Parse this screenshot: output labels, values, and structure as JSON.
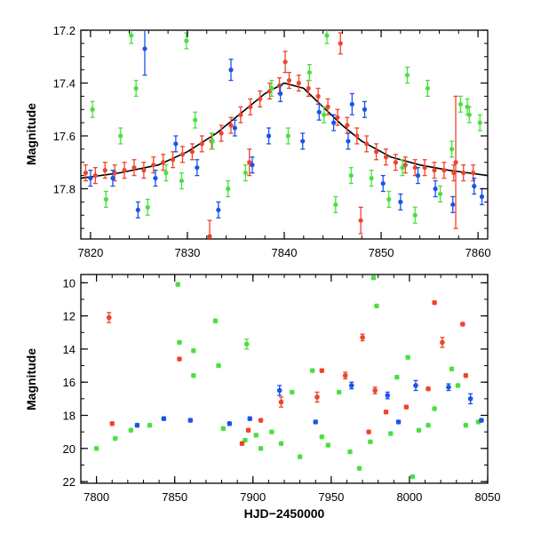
{
  "chart_data": [
    {
      "type": "scatter",
      "title": "",
      "xlabel": "",
      "ylabel": "Magnitude",
      "xlim": [
        7819,
        7861
      ],
      "ylim": [
        17.2,
        17.99
      ],
      "y_inverted": true,
      "xticks": [
        7820,
        7830,
        7840,
        7850,
        7860
      ],
      "yticks": [
        17.2,
        17.4,
        17.6,
        17.8
      ],
      "colors": {
        "red": "#f0432c",
        "green": "#4ae03f",
        "blue": "#1b54e6",
        "model": "#000000"
      },
      "series": [
        {
          "color": "red",
          "x": [
            7819.5,
            7820.5,
            7821.5,
            7822.5,
            7823.5,
            7824.5,
            7825.5,
            7826.5,
            7827.5,
            7828.5,
            7829.5,
            7830.5,
            7831.5,
            7832.5,
            7833.5,
            7834.5,
            7835.5,
            7836.5,
            7837.5,
            7838.5,
            7839.5,
            7840.5,
            7841.5,
            7842.5,
            7843.5,
            7844.5,
            7845.5,
            7846.5,
            7847.5,
            7848.5,
            7849.5,
            7850.5,
            7851.5,
            7852.5,
            7853.5,
            7854.5,
            7855.5,
            7856.5,
            7857.5,
            7858.5,
            7859.5,
            7832.3,
            7836.4,
            7840.1,
            7845.8,
            7847.9,
            7857.7
          ],
          "y": [
            17.74,
            17.75,
            17.73,
            17.74,
            17.73,
            17.72,
            17.73,
            17.71,
            17.7,
            17.69,
            17.67,
            17.66,
            17.63,
            17.62,
            17.59,
            17.56,
            17.52,
            17.49,
            17.46,
            17.43,
            17.41,
            17.39,
            17.4,
            17.42,
            17.45,
            17.49,
            17.53,
            17.56,
            17.6,
            17.63,
            17.66,
            17.68,
            17.7,
            17.71,
            17.72,
            17.72,
            17.73,
            17.73,
            17.74,
            17.74,
            17.74,
            17.98,
            17.7,
            17.32,
            17.25,
            17.92,
            17.7
          ],
          "err": [
            0.03,
            0.03,
            0.03,
            0.03,
            0.03,
            0.03,
            0.03,
            0.03,
            0.03,
            0.03,
            0.03,
            0.03,
            0.03,
            0.03,
            0.03,
            0.03,
            0.03,
            0.03,
            0.03,
            0.03,
            0.03,
            0.03,
            0.03,
            0.03,
            0.03,
            0.03,
            0.03,
            0.03,
            0.03,
            0.03,
            0.03,
            0.03,
            0.03,
            0.03,
            0.03,
            0.03,
            0.03,
            0.03,
            0.03,
            0.03,
            0.03,
            0.06,
            0.05,
            0.04,
            0.04,
            0.05,
            0.25
          ]
        },
        {
          "color": "green",
          "x": [
            7820.2,
            7821.6,
            7823.1,
            7824.7,
            7825.9,
            7827.8,
            7829.4,
            7830.8,
            7832.6,
            7834.2,
            7836.0,
            7838.7,
            7840.4,
            7842.6,
            7844.1,
            7845.3,
            7846.9,
            7849.0,
            7850.8,
            7852.2,
            7853.5,
            7854.8,
            7856.1,
            7857.3,
            7858.2,
            7859.1,
            7860.2,
            7824.2,
            7829.9,
            7844.4,
            7852.7,
            7858.9
          ],
          "y": [
            17.5,
            17.84,
            17.6,
            17.42,
            17.87,
            17.74,
            17.77,
            17.54,
            17.62,
            17.8,
            17.74,
            17.42,
            17.6,
            17.36,
            17.52,
            17.86,
            17.75,
            17.76,
            17.84,
            17.72,
            17.9,
            17.42,
            17.82,
            17.65,
            17.48,
            17.52,
            17.55,
            17.22,
            17.24,
            17.22,
            17.37,
            17.49
          ],
          "err": [
            0.03,
            0.03,
            0.03,
            0.03,
            0.03,
            0.03,
            0.03,
            0.03,
            0.03,
            0.03,
            0.03,
            0.03,
            0.03,
            0.03,
            0.03,
            0.03,
            0.03,
            0.03,
            0.03,
            0.03,
            0.03,
            0.03,
            0.03,
            0.03,
            0.03,
            0.03,
            0.03,
            0.03,
            0.03,
            0.03,
            0.03,
            0.03
          ]
        },
        {
          "color": "blue",
          "x": [
            7820.0,
            7822.3,
            7824.9,
            7826.7,
            7828.8,
            7831.0,
            7833.2,
            7834.9,
            7836.7,
            7838.4,
            7839.6,
            7841.9,
            7843.6,
            7845.1,
            7846.6,
            7848.3,
            7850.2,
            7852.0,
            7853.8,
            7855.6,
            7857.4,
            7859.6,
            7860.4,
            7825.6,
            7834.5,
            7847.0
          ],
          "y": [
            17.76,
            17.76,
            17.88,
            17.76,
            17.63,
            17.72,
            17.88,
            17.57,
            17.71,
            17.6,
            17.44,
            17.62,
            17.51,
            17.55,
            17.62,
            17.5,
            17.78,
            17.85,
            17.75,
            17.8,
            17.86,
            17.79,
            17.83,
            17.27,
            17.35,
            17.48
          ],
          "err": [
            0.03,
            0.03,
            0.03,
            0.03,
            0.03,
            0.03,
            0.03,
            0.03,
            0.03,
            0.03,
            0.03,
            0.03,
            0.03,
            0.03,
            0.03,
            0.03,
            0.03,
            0.03,
            0.03,
            0.03,
            0.03,
            0.03,
            0.03,
            0.1,
            0.04,
            0.04
          ]
        },
        {
          "color": "model",
          "type": "line",
          "x": [
            7819,
            7823,
            7827,
            7830,
            7833,
            7836,
            7838,
            7840,
            7842,
            7844,
            7846,
            7848,
            7851,
            7854,
            7857,
            7861
          ],
          "y": [
            17.76,
            17.74,
            17.71,
            17.66,
            17.59,
            17.5,
            17.44,
            17.4,
            17.42,
            17.49,
            17.56,
            17.62,
            17.68,
            17.71,
            17.73,
            17.75
          ]
        }
      ]
    },
    {
      "type": "scatter",
      "title": "",
      "xlabel": "HJD−2450000",
      "ylabel": "Magnitude",
      "xlim": [
        7790,
        8050
      ],
      "ylim": [
        9.5,
        22.1
      ],
      "y_inverted": true,
      "xticks": [
        7800,
        7850,
        7900,
        7950,
        8000,
        8050
      ],
      "yticks": [
        10,
        12,
        14,
        16,
        18,
        20,
        22
      ],
      "colors": {
        "red": "#f0432c",
        "green": "#4ae03f",
        "blue": "#1b54e6"
      },
      "series": [
        {
          "color": "green",
          "x": [
            7800,
            7812,
            7822,
            7834,
            7852,
            7853,
            7862,
            7876,
            7881,
            7895,
            7902,
            7912,
            7925,
            7938,
            7944,
            7955,
            7968,
            7977,
            7979,
            7992,
            7999,
            8006,
            8016,
            8027,
            8031,
            8036,
            8044,
            7905,
            7918,
            7930,
            7948,
            7962,
            7975,
            7988,
            8002,
            8012,
            7862,
            7878,
            7896
          ],
          "y": [
            20.0,
            19.4,
            18.9,
            18.6,
            10.1,
            13.6,
            15.6,
            12.3,
            18.8,
            19.5,
            19.2,
            19.0,
            16.6,
            15.3,
            19.3,
            16.6,
            21.2,
            9.7,
            11.4,
            15.7,
            14.5,
            18.9,
            17.6,
            15.2,
            16.2,
            18.6,
            18.4,
            20.0,
            19.7,
            20.5,
            19.8,
            20.2,
            19.6,
            19.1,
            21.7,
            18.6,
            14.1,
            15.0,
            13.7
          ],
          "err": [
            0.1,
            0.1,
            0.1,
            0.1,
            0.1,
            0.1,
            0.1,
            0.1,
            0.1,
            0.1,
            0.1,
            0.1,
            0.1,
            0.1,
            0.1,
            0.1,
            0.1,
            0.1,
            0.1,
            0.1,
            0.1,
            0.1,
            0.1,
            0.1,
            0.1,
            0.1,
            0.1,
            0.1,
            0.1,
            0.1,
            0.1,
            0.1,
            0.1,
            0.1,
            0.1,
            0.1,
            0.1,
            0.1,
            0.3
          ]
        },
        {
          "color": "blue",
          "x": [
            7826,
            7843,
            7860,
            7885,
            7898,
            7917,
            7940,
            7963,
            7986,
            7993,
            8004,
            8025,
            8039,
            8046
          ],
          "y": [
            18.6,
            18.2,
            18.3,
            18.5,
            18.2,
            16.5,
            18.4,
            16.2,
            16.8,
            18.4,
            16.2,
            16.3,
            17.0,
            18.3
          ],
          "err": [
            0.1,
            0.1,
            0.1,
            0.1,
            0.1,
            0.3,
            0.1,
            0.2,
            0.2,
            0.1,
            0.3,
            0.2,
            0.3,
            0.1
          ]
        },
        {
          "color": "red",
          "x": [
            7808,
            7810,
            7853,
            7893,
            7897,
            7905,
            7918,
            7941,
            7944,
            7959,
            7970,
            7974,
            7978,
            7985,
            7998,
            8012,
            8016,
            8021,
            8034,
            8036
          ],
          "y": [
            12.1,
            18.5,
            14.6,
            19.7,
            18.9,
            18.3,
            17.2,
            16.9,
            15.3,
            15.6,
            13.3,
            19.0,
            16.5,
            17.8,
            17.5,
            16.4,
            11.2,
            13.6,
            12.5,
            15.6
          ],
          "err": [
            0.3,
            0.1,
            0.1,
            0.1,
            0.1,
            0.1,
            0.3,
            0.3,
            0.1,
            0.2,
            0.2,
            0.1,
            0.2,
            0.1,
            0.1,
            0.1,
            0.1,
            0.3,
            0.1,
            0.1
          ]
        }
      ]
    }
  ]
}
